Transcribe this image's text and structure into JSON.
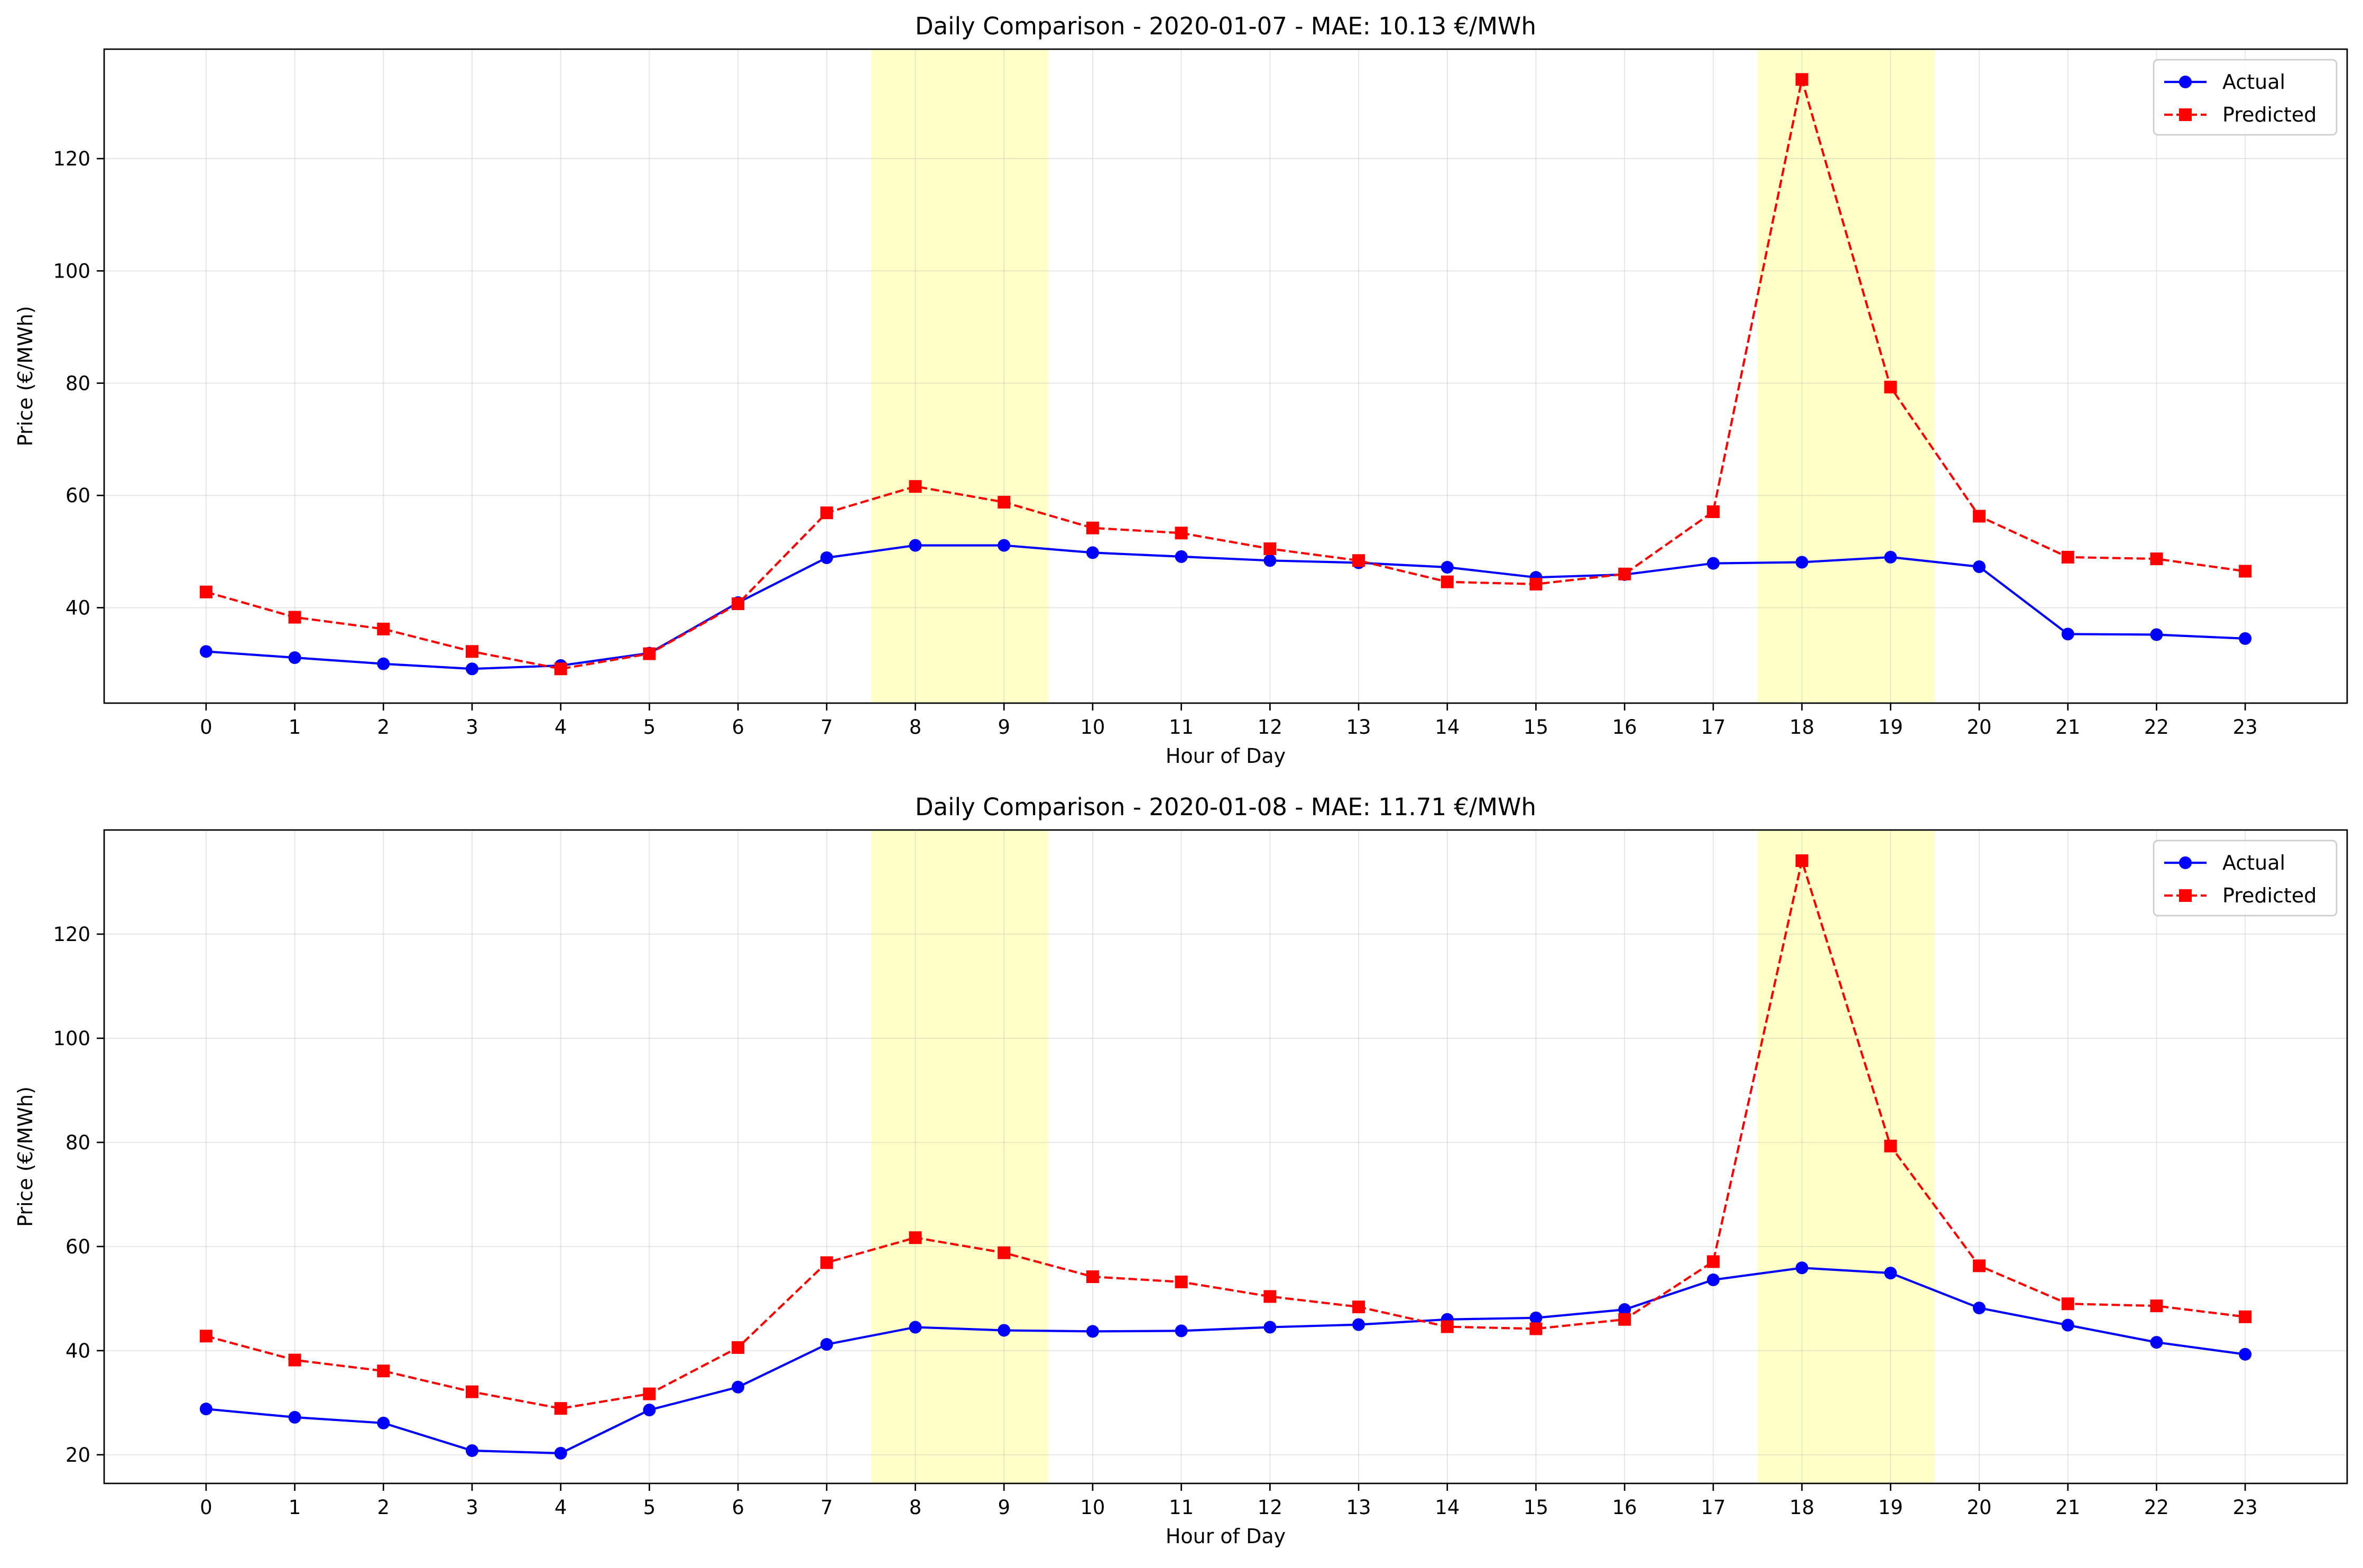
{
  "figure": {
    "background": "#ffffff"
  },
  "chart_data": [
    {
      "type": "line",
      "title": "Daily Comparison - 2020-01-07 - MAE: 10.13 €/MWh",
      "xlabel": "Hour of Day",
      "ylabel": "Price (€/MWh)",
      "x": [
        0,
        1,
        2,
        3,
        4,
        5,
        6,
        7,
        8,
        9,
        10,
        11,
        12,
        13,
        14,
        15,
        16,
        17,
        18,
        19,
        20,
        21,
        22,
        23
      ],
      "x_ticks": [
        "0",
        "1",
        "2",
        "3",
        "4",
        "5",
        "6",
        "7",
        "8",
        "9",
        "10",
        "11",
        "12",
        "13",
        "14",
        "15",
        "16",
        "17",
        "18",
        "19",
        "20",
        "21",
        "22",
        "23"
      ],
      "xlim": [
        -1.15,
        24.15
      ],
      "ylim": [
        23.0,
        139.5
      ],
      "y_ticks": [
        40,
        60,
        80,
        100,
        120
      ],
      "y_tick_labels": [
        "40",
        "60",
        "80",
        "100",
        "120"
      ],
      "grid": true,
      "legend": "top-right",
      "highlight_bands": [
        {
          "x0": 7.5,
          "x1": 9.5,
          "color": "#ffffc8"
        },
        {
          "x0": 17.5,
          "x1": 19.5,
          "color": "#ffffc8"
        }
      ],
      "series": [
        {
          "name": "Actual",
          "color": "#0000ff",
          "marker": "circle",
          "linestyle": "solid",
          "values": [
            32.2,
            31.1,
            30.0,
            29.1,
            29.7,
            31.9,
            40.9,
            48.9,
            51.1,
            51.1,
            49.8,
            49.1,
            48.4,
            48.0,
            47.2,
            45.4,
            45.9,
            47.9,
            48.1,
            49.0,
            47.3,
            35.3,
            35.2,
            34.5
          ]
        },
        {
          "name": "Predicted",
          "color": "#ff0000",
          "marker": "square",
          "linestyle": "dashed",
          "values": [
            42.8,
            38.3,
            36.2,
            32.2,
            29.1,
            31.8,
            40.7,
            56.9,
            61.6,
            58.8,
            54.2,
            53.3,
            50.5,
            48.4,
            44.6,
            44.2,
            46.0,
            57.1,
            134.1,
            79.3,
            56.3,
            49.0,
            48.7,
            46.5
          ]
        }
      ]
    },
    {
      "type": "line",
      "title": "Daily Comparison - 2020-01-08 - MAE: 11.71 €/MWh",
      "xlabel": "Hour of Day",
      "ylabel": "Price (€/MWh)",
      "x": [
        0,
        1,
        2,
        3,
        4,
        5,
        6,
        7,
        8,
        9,
        10,
        11,
        12,
        13,
        14,
        15,
        16,
        17,
        18,
        19,
        20,
        21,
        22,
        23
      ],
      "x_ticks": [
        "0",
        "1",
        "2",
        "3",
        "4",
        "5",
        "6",
        "7",
        "8",
        "9",
        "10",
        "11",
        "12",
        "13",
        "14",
        "15",
        "16",
        "17",
        "18",
        "19",
        "20",
        "21",
        "22",
        "23"
      ],
      "xlim": [
        -1.15,
        24.15
      ],
      "ylim": [
        14.5,
        140.0
      ],
      "y_ticks": [
        20,
        40,
        60,
        80,
        100,
        120
      ],
      "y_tick_labels": [
        "20",
        "40",
        "60",
        "80",
        "100",
        "120"
      ],
      "grid": true,
      "legend": "top-right",
      "highlight_bands": [
        {
          "x0": 7.5,
          "x1": 9.5,
          "color": "#ffffc8"
        },
        {
          "x0": 17.5,
          "x1": 19.5,
          "color": "#ffffc8"
        }
      ],
      "series": [
        {
          "name": "Actual",
          "color": "#0000ff",
          "marker": "circle",
          "linestyle": "solid",
          "values": [
            28.8,
            27.2,
            26.1,
            20.8,
            20.3,
            28.6,
            33.0,
            41.2,
            44.5,
            43.9,
            43.7,
            43.8,
            44.5,
            45.0,
            46.0,
            46.3,
            47.9,
            53.6,
            55.9,
            54.9,
            48.2,
            44.9,
            41.6,
            39.3
          ]
        },
        {
          "name": "Predicted",
          "color": "#ff0000",
          "marker": "square",
          "linestyle": "dashed",
          "values": [
            42.8,
            38.2,
            36.1,
            32.1,
            28.9,
            31.7,
            40.6,
            56.9,
            61.7,
            58.8,
            54.2,
            53.2,
            50.4,
            48.4,
            44.6,
            44.2,
            46.0,
            57.1,
            134.1,
            79.3,
            56.3,
            49.0,
            48.6,
            46.5
          ]
        }
      ]
    }
  ]
}
